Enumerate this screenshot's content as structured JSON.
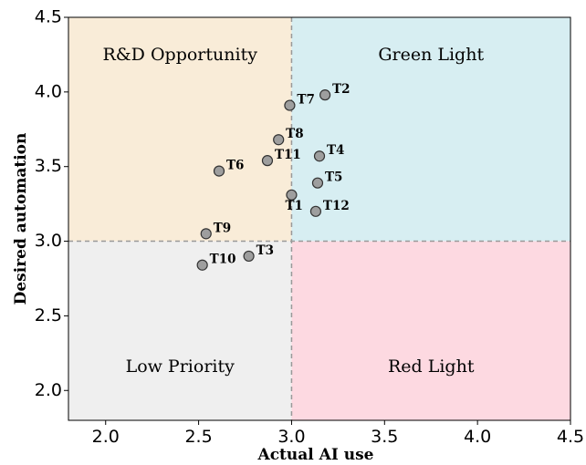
{
  "chart_data": {
    "type": "scatter",
    "title": "",
    "xlabel": "Actual AI use",
    "ylabel": "Desired automation",
    "xlim": [
      1.8,
      4.5
    ],
    "ylim": [
      1.8,
      4.5
    ],
    "xticks": [
      "2.0",
      "2.5",
      "3.0",
      "3.5",
      "4.0",
      "4.5"
    ],
    "yticks": [
      "2.0",
      "2.5",
      "3.0",
      "3.5",
      "4.0",
      "4.5"
    ],
    "grid": false,
    "thresholds": {
      "x": 3.0,
      "y": 3.0
    },
    "quadrants": [
      {
        "name": "R&D Opportunity",
        "position": "top-left",
        "color": "#f9ecd8"
      },
      {
        "name": "Green Light",
        "position": "top-right",
        "color": "#d7eef2"
      },
      {
        "name": "Low Priority",
        "position": "bottom-left",
        "color": "#efefef"
      },
      {
        "name": "Red Light",
        "position": "bottom-right",
        "color": "#fdd9e1"
      }
    ],
    "marker_color": "#9e9e9e",
    "points": [
      {
        "label": "T1",
        "x": 3.0,
        "y": 3.31,
        "label_pos": "below"
      },
      {
        "label": "T2",
        "x": 3.18,
        "y": 3.98,
        "label_pos": "right"
      },
      {
        "label": "T3",
        "x": 2.77,
        "y": 2.9,
        "label_pos": "right"
      },
      {
        "label": "T4",
        "x": 3.15,
        "y": 3.57,
        "label_pos": "right"
      },
      {
        "label": "T5",
        "x": 3.14,
        "y": 3.39,
        "label_pos": "right"
      },
      {
        "label": "T6",
        "x": 2.61,
        "y": 3.47,
        "label_pos": "right"
      },
      {
        "label": "T7",
        "x": 2.99,
        "y": 3.91,
        "label_pos": "right"
      },
      {
        "label": "T8",
        "x": 2.93,
        "y": 3.68,
        "label_pos": "right"
      },
      {
        "label": "T9",
        "x": 2.54,
        "y": 3.05,
        "label_pos": "right"
      },
      {
        "label": "T10",
        "x": 2.52,
        "y": 2.84,
        "label_pos": "right"
      },
      {
        "label": "T11",
        "x": 2.87,
        "y": 3.54,
        "label_pos": "right"
      },
      {
        "label": "T12",
        "x": 3.13,
        "y": 3.2,
        "label_pos": "right"
      }
    ]
  }
}
